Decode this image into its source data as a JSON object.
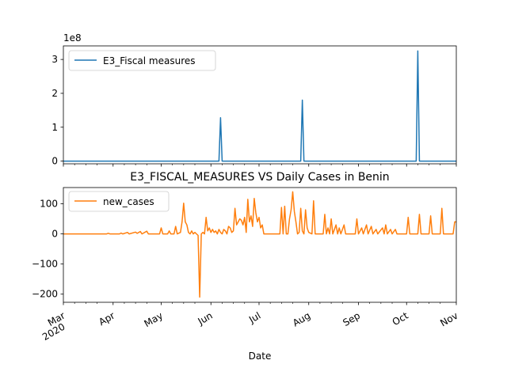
{
  "chart_data": [
    {
      "type": "line",
      "title": "",
      "xlabel": "",
      "ylabel": "",
      "scale_label": "1e8",
      "ylim": [
        -0.08,
        3.4
      ],
      "yticks": [
        0,
        1,
        2,
        3
      ],
      "grid": false,
      "legend_position": "top-left",
      "series": [
        {
          "name": "E3_Fiscal measures",
          "color": "#1f77b4",
          "points": [
            [
              "2020-03-01",
              0
            ],
            [
              "2020-06-06",
              0
            ],
            [
              "2020-06-07",
              1.28
            ],
            [
              "2020-06-08",
              0
            ],
            [
              "2020-07-27",
              0
            ],
            [
              "2020-07-28",
              1.8
            ],
            [
              "2020-07-29",
              0
            ],
            [
              "2020-10-07",
              0
            ],
            [
              "2020-10-08",
              3.25
            ],
            [
              "2020-10-09",
              0
            ],
            [
              "2020-11-01",
              0
            ]
          ]
        }
      ]
    },
    {
      "type": "line",
      "title": "E3_FISCAL_MEASURES VS Daily Cases in Benin",
      "xlabel": "Date",
      "ylabel": "",
      "ylim": [
        -227,
        154
      ],
      "yticks": [
        100,
        0,
        -100,
        -200
      ],
      "ytick_labels": [
        "100",
        "0",
        "−100",
        "−200"
      ],
      "grid": false,
      "legend_position": "top-left",
      "x_major_ticks": [
        {
          "date": "2020-03-01",
          "label": "Mar",
          "sublabel": "2020"
        },
        {
          "date": "2020-04-01",
          "label": "Apr"
        },
        {
          "date": "2020-05-01",
          "label": "May"
        },
        {
          "date": "2020-06-01",
          "label": "Jun"
        },
        {
          "date": "2020-07-01",
          "label": "Jul"
        },
        {
          "date": "2020-08-01",
          "label": "Aug"
        },
        {
          "date": "2020-09-01",
          "label": "Sep"
        },
        {
          "date": "2020-10-01",
          "label": "Oct"
        },
        {
          "date": "2020-11-01",
          "label": "Nov"
        }
      ],
      "series": [
        {
          "name": "new_cases",
          "color": "#ff7f0e",
          "points": [
            [
              "2020-03-01",
              0
            ],
            [
              "2020-03-28",
              0
            ],
            [
              "2020-03-29",
              2
            ],
            [
              "2020-03-30",
              0
            ],
            [
              "2020-04-05",
              0
            ],
            [
              "2020-04-06",
              3
            ],
            [
              "2020-04-07",
              0
            ],
            [
              "2020-04-10",
              5
            ],
            [
              "2020-04-11",
              0
            ],
            [
              "2020-04-15",
              6
            ],
            [
              "2020-04-16",
              2
            ],
            [
              "2020-04-18",
              8
            ],
            [
              "2020-04-19",
              0
            ],
            [
              "2020-04-22",
              9
            ],
            [
              "2020-04-23",
              0
            ],
            [
              "2020-04-30",
              0
            ],
            [
              "2020-05-01",
              20
            ],
            [
              "2020-05-02",
              0
            ],
            [
              "2020-05-05",
              0
            ],
            [
              "2020-05-06",
              10
            ],
            [
              "2020-05-07",
              0
            ],
            [
              "2020-05-09",
              0
            ],
            [
              "2020-05-10",
              25
            ],
            [
              "2020-05-11",
              0
            ],
            [
              "2020-05-13",
              5
            ],
            [
              "2020-05-14",
              40
            ],
            [
              "2020-05-15",
              102
            ],
            [
              "2020-05-16",
              40
            ],
            [
              "2020-05-17",
              30
            ],
            [
              "2020-05-18",
              5
            ],
            [
              "2020-05-19",
              0
            ],
            [
              "2020-05-20",
              10
            ],
            [
              "2020-05-21",
              0
            ],
            [
              "2020-05-22",
              5
            ],
            [
              "2020-05-23",
              0
            ],
            [
              "2020-05-24",
              -5
            ],
            [
              "2020-05-25",
              -210
            ],
            [
              "2020-05-26",
              0
            ],
            [
              "2020-05-27",
              5
            ],
            [
              "2020-05-28",
              0
            ],
            [
              "2020-05-29",
              55
            ],
            [
              "2020-05-30",
              10
            ],
            [
              "2020-05-31",
              20
            ],
            [
              "2020-06-01",
              5
            ],
            [
              "2020-06-02",
              15
            ],
            [
              "2020-06-03",
              5
            ],
            [
              "2020-06-04",
              10
            ],
            [
              "2020-06-05",
              0
            ],
            [
              "2020-06-06",
              15
            ],
            [
              "2020-06-07",
              5
            ],
            [
              "2020-06-08",
              0
            ],
            [
              "2020-06-09",
              15
            ],
            [
              "2020-06-10",
              10
            ],
            [
              "2020-06-11",
              0
            ],
            [
              "2020-06-12",
              25
            ],
            [
              "2020-06-13",
              20
            ],
            [
              "2020-06-14",
              5
            ],
            [
              "2020-06-15",
              10
            ],
            [
              "2020-06-16",
              85
            ],
            [
              "2020-06-17",
              30
            ],
            [
              "2020-06-18",
              40
            ],
            [
              "2020-06-19",
              50
            ],
            [
              "2020-06-20",
              45
            ],
            [
              "2020-06-21",
              30
            ],
            [
              "2020-06-22",
              55
            ],
            [
              "2020-06-23",
              5
            ],
            [
              "2020-06-24",
              115
            ],
            [
              "2020-06-25",
              40
            ],
            [
              "2020-06-26",
              60
            ],
            [
              "2020-06-27",
              25
            ],
            [
              "2020-06-28",
              118
            ],
            [
              "2020-06-29",
              70
            ],
            [
              "2020-06-30",
              40
            ],
            [
              "2020-07-01",
              55
            ],
            [
              "2020-07-02",
              20
            ],
            [
              "2020-07-03",
              30
            ],
            [
              "2020-07-04",
              0
            ],
            [
              "2020-07-14",
              0
            ],
            [
              "2020-07-15",
              88
            ],
            [
              "2020-07-16",
              0
            ],
            [
              "2020-07-17",
              92
            ],
            [
              "2020-07-18",
              0
            ],
            [
              "2020-07-19",
              0
            ],
            [
              "2020-07-20",
              50
            ],
            [
              "2020-07-21",
              80
            ],
            [
              "2020-07-22",
              140
            ],
            [
              "2020-07-23",
              75
            ],
            [
              "2020-07-24",
              40
            ],
            [
              "2020-07-25",
              0
            ],
            [
              "2020-07-26",
              5
            ],
            [
              "2020-07-27",
              85
            ],
            [
              "2020-07-28",
              10
            ],
            [
              "2020-07-29",
              0
            ],
            [
              "2020-07-30",
              80
            ],
            [
              "2020-07-31",
              20
            ],
            [
              "2020-08-01",
              5
            ],
            [
              "2020-08-03",
              0
            ],
            [
              "2020-08-04",
              110
            ],
            [
              "2020-08-05",
              0
            ],
            [
              "2020-08-10",
              0
            ],
            [
              "2020-08-11",
              65
            ],
            [
              "2020-08-12",
              0
            ],
            [
              "2020-08-13",
              20
            ],
            [
              "2020-08-14",
              0
            ],
            [
              "2020-08-15",
              50
            ],
            [
              "2020-08-16",
              0
            ],
            [
              "2020-08-18",
              30
            ],
            [
              "2020-08-19",
              0
            ],
            [
              "2020-08-20",
              20
            ],
            [
              "2020-08-21",
              0
            ],
            [
              "2020-08-23",
              30
            ],
            [
              "2020-08-24",
              0
            ],
            [
              "2020-08-30",
              0
            ],
            [
              "2020-08-31",
              50
            ],
            [
              "2020-09-01",
              0
            ],
            [
              "2020-09-03",
              20
            ],
            [
              "2020-09-04",
              0
            ],
            [
              "2020-09-06",
              30
            ],
            [
              "2020-09-07",
              0
            ],
            [
              "2020-09-09",
              25
            ],
            [
              "2020-09-10",
              0
            ],
            [
              "2020-09-12",
              15
            ],
            [
              "2020-09-13",
              0
            ],
            [
              "2020-09-16",
              20
            ],
            [
              "2020-09-17",
              0
            ],
            [
              "2020-09-18",
              30
            ],
            [
              "2020-09-19",
              0
            ],
            [
              "2020-09-21",
              15
            ],
            [
              "2020-09-22",
              0
            ],
            [
              "2020-09-24",
              15
            ],
            [
              "2020-09-25",
              0
            ],
            [
              "2020-10-01",
              0
            ],
            [
              "2020-10-02",
              55
            ],
            [
              "2020-10-03",
              0
            ],
            [
              "2020-10-08",
              0
            ],
            [
              "2020-10-09",
              65
            ],
            [
              "2020-10-10",
              0
            ],
            [
              "2020-10-15",
              0
            ],
            [
              "2020-10-16",
              60
            ],
            [
              "2020-10-17",
              0
            ],
            [
              "2020-10-22",
              0
            ],
            [
              "2020-10-23",
              85
            ],
            [
              "2020-10-24",
              0
            ],
            [
              "2020-10-30",
              0
            ],
            [
              "2020-10-31",
              40
            ],
            [
              "2020-11-01",
              40
            ]
          ]
        }
      ]
    }
  ]
}
